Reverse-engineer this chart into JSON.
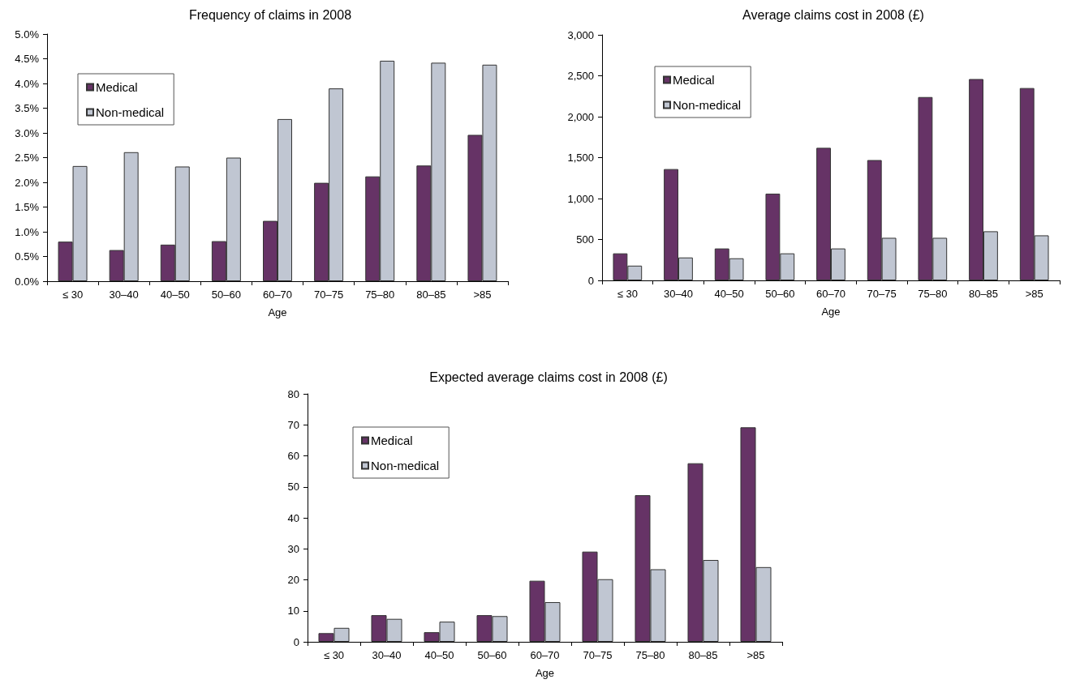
{
  "chart_data": [
    {
      "type": "bar",
      "title": "Frequency of claims in 2008",
      "xlabel": "Age",
      "categories": [
        "≤ 30",
        "30–40",
        "40–50",
        "50–60",
        "60–70",
        "70–75",
        "75–80",
        "80–85",
        ">85"
      ],
      "series": [
        {
          "name": "Medical",
          "color": "#663366",
          "values": [
            0.8,
            0.63,
            0.74,
            0.81,
            1.22,
            1.99,
            2.12,
            2.34,
            2.96
          ]
        },
        {
          "name": "Non-medical",
          "color": "#c0c6d2",
          "values": [
            2.33,
            2.61,
            2.32,
            2.5,
            3.28,
            3.9,
            4.46,
            4.42,
            4.38
          ]
        }
      ],
      "ylim": [
        0,
        5
      ],
      "yticks": [
        {
          "value": 0,
          "label": "0.0%"
        },
        {
          "value": 0.5,
          "label": "0.5%"
        },
        {
          "value": 1,
          "label": "1.0%"
        },
        {
          "value": 1.5,
          "label": "1.5%"
        },
        {
          "value": 2,
          "label": "2.0%"
        },
        {
          "value": 2.5,
          "label": "2.5%"
        },
        {
          "value": 3,
          "label": "3.0%"
        },
        {
          "value": 3.5,
          "label": "3.5%"
        },
        {
          "value": 4,
          "label": "4.0%"
        },
        {
          "value": 4.5,
          "label": "4.5%"
        },
        {
          "value": 5,
          "label": "5.0%"
        }
      ],
      "grid": false,
      "legend": "top left"
    },
    {
      "type": "bar",
      "title": "Average claims cost in 2008 (£)",
      "xlabel": "Age",
      "categories": [
        "≤ 30",
        "30–40",
        "40–50",
        "50–60",
        "60–70",
        "70–75",
        "75–80",
        "80–85",
        ">85"
      ],
      "series": [
        {
          "name": "Medical",
          "color": "#663366",
          "values": [
            330,
            1360,
            390,
            1060,
            1620,
            1470,
            2240,
            2460,
            2350
          ]
        },
        {
          "name": "Non-medical",
          "color": "#c0c6d2",
          "values": [
            180,
            280,
            270,
            330,
            390,
            520,
            520,
            600,
            550
          ]
        }
      ],
      "ylim": [
        0,
        3000
      ],
      "yticks": [
        0,
        500,
        {
          "value": 1000,
          "label": "1,000"
        },
        {
          "value": 1500,
          "label": "1,500"
        },
        {
          "value": 2000,
          "label": "2,000"
        },
        {
          "value": 2500,
          "label": "2,500"
        },
        {
          "value": 3000,
          "label": "3,000"
        }
      ],
      "grid": false,
      "legend": "top left"
    },
    {
      "type": "bar",
      "title": "Expected average claims cost in 2008 (£)",
      "xlabel": "Age",
      "categories": [
        "≤ 30",
        "30–40",
        "40–50",
        "50–60",
        "60–70",
        "70–75",
        "75–80",
        "80–85",
        ">85"
      ],
      "series": [
        {
          "name": "Medical",
          "color": "#663366",
          "values": [
            2.8,
            8.6,
            3.1,
            8.6,
            19.7,
            29.1,
            47.3,
            57.6,
            69.2
          ]
        },
        {
          "name": "Non-medical",
          "color": "#c0c6d2",
          "values": [
            4.5,
            7.4,
            6.5,
            8.3,
            12.8,
            20.2,
            23.4,
            26.4,
            24.1
          ]
        }
      ],
      "ylim": [
        0,
        80
      ],
      "yticks": [
        0,
        10,
        20,
        30,
        40,
        50,
        60,
        70,
        80
      ],
      "grid": false,
      "legend": "top left"
    }
  ]
}
